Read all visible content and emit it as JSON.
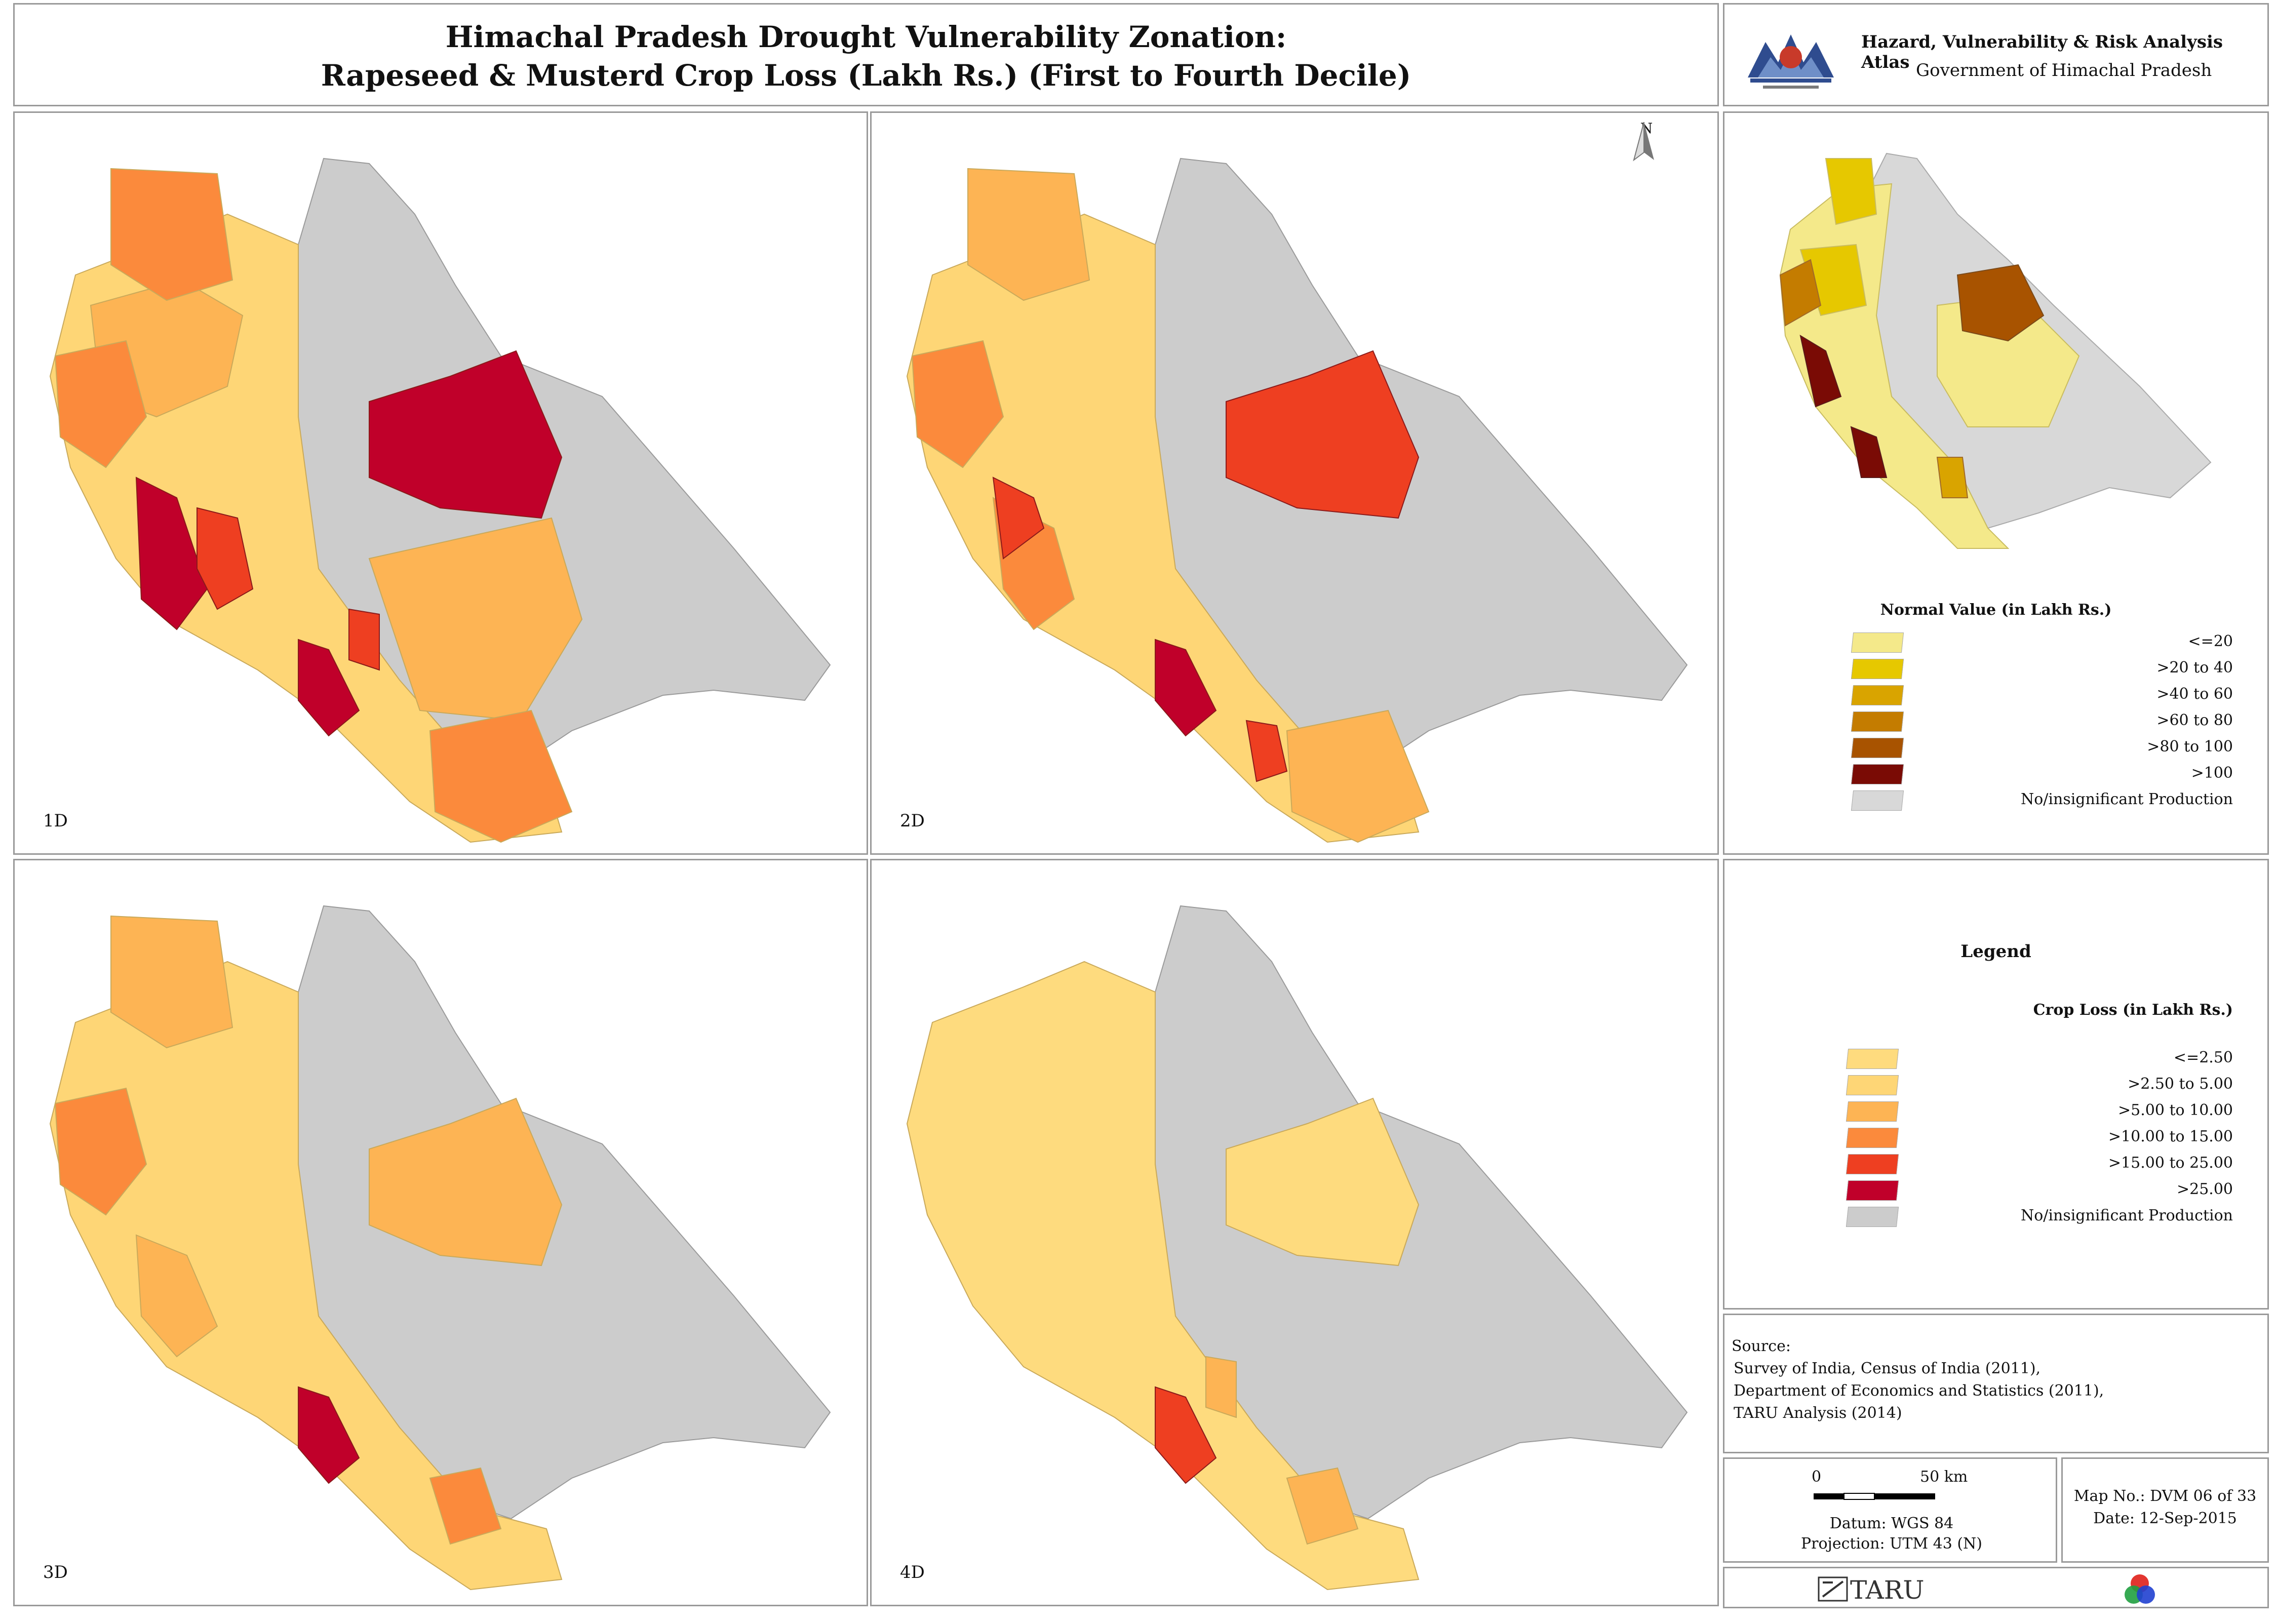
{
  "header": {
    "title_line1": "Himachal Pradesh Drought Vulnerability Zonation:",
    "title_line2": "Rapeseed & Musterd Crop Loss (Lakh Rs.) (First to Fourth Decile)",
    "atlas_title": "Hazard, Vulnerability & Risk Analysis Atlas",
    "government": "Government of Himachal Pradesh"
  },
  "maps": [
    {
      "label": "1D"
    },
    {
      "label": "2D"
    },
    {
      "label": "3D"
    },
    {
      "label": "4D"
    }
  ],
  "north_arrow": "N",
  "normal_legend": {
    "title": "Normal Value (in Lakh Rs.)",
    "items": [
      {
        "label": "<=20",
        "color": "#f4e98a"
      },
      {
        "label": ">20 to 40",
        "color": "#e6c800"
      },
      {
        "label": ">40 to 60",
        "color": "#d9a400"
      },
      {
        "label": ">60 to 80",
        "color": "#c47c00"
      },
      {
        "label": ">80 to 100",
        "color": "#a85300"
      },
      {
        "label": ">100",
        "color": "#7a0b05"
      },
      {
        "label": "No/insignificant Production",
        "color": "#d8d8d8"
      }
    ]
  },
  "crop_loss_legend": {
    "heading": "Legend",
    "title": "Crop Loss (in Lakh Rs.)",
    "items": [
      {
        "label": "<=2.50",
        "color": "#fedb7e"
      },
      {
        "label": ">2.50 to 5.00",
        "color": "#fed676"
      },
      {
        "label": ">5.00 to 10.00",
        "color": "#fdb454"
      },
      {
        "label": ">10.00 to 15.00",
        "color": "#fb8a3c"
      },
      {
        "label": ">15.00 to 25.00",
        "color": "#ee3f21"
      },
      {
        "label": ">25.00",
        "color": "#c0002a"
      },
      {
        "label": "No/insignificant Production",
        "color": "#cccccc"
      }
    ]
  },
  "source": {
    "heading": "Source:",
    "lines": [
      "Survey of India, Census of India (2011),",
      "Department of Economics and Statistics (2011),",
      "TARU Analysis (2014)"
    ]
  },
  "scale": {
    "zero": "0",
    "distance": "50 km",
    "datum": "Datum: WGS 84",
    "projection": "Projection: UTM 43 (N)"
  },
  "map_info": {
    "map_no": "Map No.: DVM 06 of 33",
    "date": "Date: 12-Sep-2015"
  },
  "footer": {
    "taru": "TARU"
  }
}
